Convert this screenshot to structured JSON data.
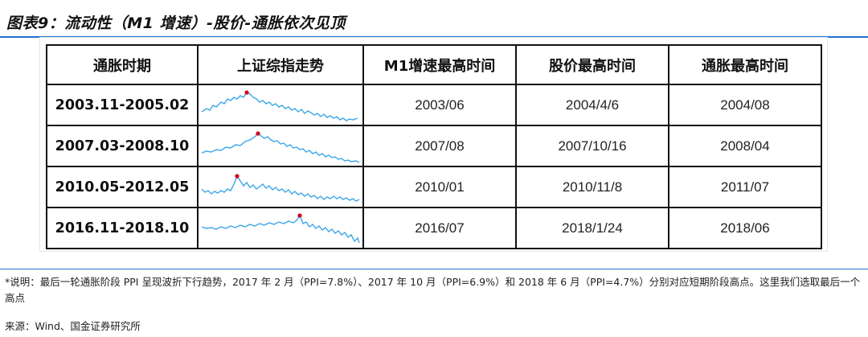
{
  "title": "图表9：流动性（M1 增速）-股价-通胀依次见顶",
  "colors": {
    "accent_rule": "#1e73d2",
    "spark_line": "#3aa6e8",
    "peak_marker": "#d0021b"
  },
  "table": {
    "headers": [
      "通胀时期",
      "上证综指走势",
      "M1增速最高时间",
      "股价最高时间",
      "通胀最高时间"
    ],
    "rows": [
      {
        "period": "2003.11-2005.02",
        "m1_peak": "2003/06",
        "stock_peak": "2004/4/6",
        "cpi_peak": "2004/08"
      },
      {
        "period": "2007.03-2008.10",
        "m1_peak": "2007/08",
        "stock_peak": "2007/10/16",
        "cpi_peak": "2008/04"
      },
      {
        "period": "2010.05-2012.05",
        "m1_peak": "2010/01",
        "stock_peak": "2010/11/8",
        "cpi_peak": "2011/07"
      },
      {
        "period": "2016.11-2018.10",
        "m1_peak": "2016/07",
        "stock_peak": "2018/1/24",
        "cpi_peak": "2018/06"
      }
    ]
  },
  "note": "*说明：最后一轮通胀阶段 PPI 呈现波折下行趋势，2017 年 2 月（PPI=7.8%）、2017 年 10 月（PPI=6.9%）和 2018 年 6 月（PPI=4.7%）分别对应短期阶段高点。这里我们选取最后一个高点",
  "source": "来源：Wind、国金证券研究所"
}
